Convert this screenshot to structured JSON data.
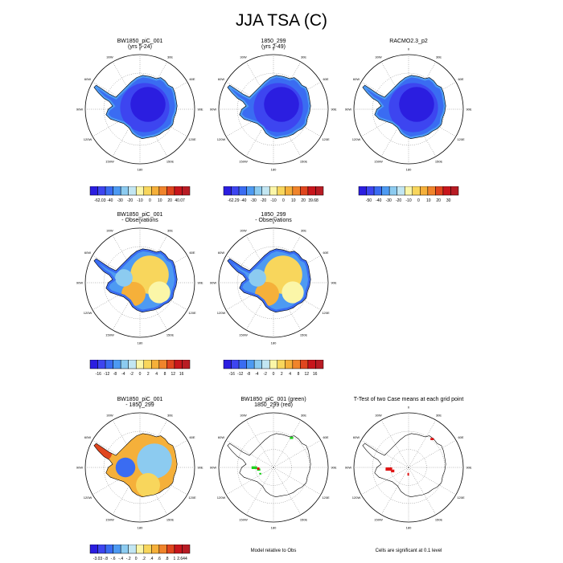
{
  "page_title": "JJA TSA (C)",
  "grid_labels": [
    "0",
    "30E",
    "60E",
    "90E",
    "120E",
    "150E",
    "180",
    "150W",
    "120W",
    "90W",
    "60W",
    "30W"
  ],
  "panels": [
    {
      "id": "r1c1",
      "title1": "BW1850_piC_001",
      "title2": "(yrs 5-24)",
      "style": "abs",
      "colorbar": {
        "colors": [
          "#2b1ee0",
          "#3d45f0",
          "#3a6cf2",
          "#4d9af2",
          "#8ccbf0",
          "#c2e6f2",
          "#fbf6a8",
          "#f8d65c",
          "#f5b03a",
          "#f0842b",
          "#e0461e",
          "#c8161c",
          "#b81c24"
        ],
        "labels": [
          "-62.03",
          "-40",
          "-30",
          "-20",
          "-10",
          "0",
          "10",
          "20",
          "40.07"
        ]
      }
    },
    {
      "id": "r1c2",
      "title1": "1850_299",
      "title2": "(yrs 2-49)",
      "style": "abs",
      "colorbar": {
        "colors": [
          "#2b1ee0",
          "#3d45f0",
          "#3a6cf2",
          "#4d9af2",
          "#8ccbf0",
          "#c2e6f2",
          "#fbf6a8",
          "#f8d65c",
          "#f5b03a",
          "#f0842b",
          "#e0461e",
          "#c8161c",
          "#b81c24"
        ],
        "labels": [
          "-62.29",
          "-40",
          "-30",
          "-20",
          "-10",
          "0",
          "10",
          "20",
          "39.68"
        ]
      }
    },
    {
      "id": "r1c3",
      "title1": "RACMO2.3_p2",
      "title2": "",
      "style": "abs",
      "colorbar": {
        "colors": [
          "#2b1ee0",
          "#3d45f0",
          "#3a6cf2",
          "#4d9af2",
          "#8ccbf0",
          "#c2e6f2",
          "#fbf6a8",
          "#f8d65c",
          "#f5b03a",
          "#f0842b",
          "#e0461e",
          "#c8161c",
          "#b81c24"
        ],
        "labels": [
          "-50",
          "-40",
          "-30",
          "-20",
          "-10",
          "0",
          "10",
          "20",
          "30"
        ]
      }
    },
    {
      "id": "r2c1",
      "title1": "BW1850_piC_001",
      "title2": "- Observations",
      "style": "diff",
      "colorbar": {
        "colors": [
          "#2b1ee0",
          "#3d45f0",
          "#3a6cf2",
          "#4d9af2",
          "#8ccbf0",
          "#c2e6f2",
          "#fbf6a8",
          "#f8d65c",
          "#f5b03a",
          "#f0842b",
          "#e0461e",
          "#c8161c",
          "#b81c24"
        ],
        "labels": [
          "-16",
          "-12",
          "-8",
          "-4",
          "-2",
          "0",
          "2",
          "4",
          "8",
          "12",
          "16"
        ]
      }
    },
    {
      "id": "r2c2",
      "title1": "1850_299",
      "title2": "- Observations",
      "style": "diff",
      "colorbar": {
        "colors": [
          "#2b1ee0",
          "#3d45f0",
          "#3a6cf2",
          "#4d9af2",
          "#8ccbf0",
          "#c2e6f2",
          "#fbf6a8",
          "#f8d65c",
          "#f5b03a",
          "#f0842b",
          "#e0461e",
          "#c8161c",
          "#b81c24"
        ],
        "labels": [
          "-16",
          "-12",
          "-8",
          "-4",
          "-2",
          "0",
          "2",
          "4",
          "8",
          "12",
          "16"
        ]
      }
    },
    {
      "id": "r3c1",
      "title1": "BW1850_piC_001",
      "title2": "- 1850_299",
      "style": "diff2",
      "colorbar": {
        "colors": [
          "#2b1ee0",
          "#3d45f0",
          "#3a6cf2",
          "#4d9af2",
          "#8ccbf0",
          "#c2e6f2",
          "#fbf6a8",
          "#f8d65c",
          "#f5b03a",
          "#f0842b",
          "#e0461e",
          "#c8161c",
          "#b81c24"
        ],
        "labels": [
          "-3.03",
          "-.8",
          "-.6",
          "-.4",
          "-.2",
          "0",
          ".2",
          ".4",
          ".6",
          ".8",
          "1",
          "2.644"
        ]
      }
    },
    {
      "id": "r3c2",
      "title1": "BW1850_piC_001 (green)",
      "title2": "1850_299 (red)",
      "style": "outline-green",
      "footer": "Model relative to Obs"
    },
    {
      "id": "r3c3",
      "title1": "T-Test of two Case means at each grid point",
      "title2": "",
      "style": "outline-red",
      "footer": "Cells are significant at 0.1 level"
    }
  ],
  "chart_data": [
    {
      "type": "heatmap",
      "title": "BW1850_piC_001",
      "subtitle": "(yrs 5-24)",
      "value_range": [
        -62.03,
        40.07
      ],
      "colorbar_ticks": [
        -62.03,
        -40,
        -30,
        -20,
        -10,
        0,
        10,
        20,
        40.07
      ]
    },
    {
      "type": "heatmap",
      "title": "1850_299",
      "subtitle": "(yrs 2-49)",
      "value_range": [
        -62.29,
        39.68
      ],
      "colorbar_ticks": [
        -62.29,
        -40,
        -30,
        -20,
        -10,
        0,
        10,
        20,
        39.68
      ]
    },
    {
      "type": "heatmap",
      "title": "RACMO2.3_p2",
      "colorbar_ticks": [
        -50,
        -40,
        -30,
        -20,
        -10,
        0,
        10,
        20,
        30
      ]
    },
    {
      "type": "heatmap",
      "title": "BW1850_piC_001",
      "subtitle": "- Observations",
      "colorbar_ticks": [
        -16,
        -12,
        -8,
        -4,
        -2,
        0,
        2,
        4,
        8,
        12,
        16
      ]
    },
    {
      "type": "heatmap",
      "title": "1850_299",
      "subtitle": "- Observations",
      "colorbar_ticks": [
        -16,
        -12,
        -8,
        -4,
        -2,
        0,
        2,
        4,
        8,
        12,
        16
      ]
    },
    {
      "type": "heatmap",
      "title": "BW1850_piC_001",
      "subtitle": "- 1850_299",
      "value_range": [
        -3.03,
        2.644
      ],
      "colorbar_ticks": [
        -3.03,
        -0.8,
        -0.6,
        -0.4,
        -0.2,
        0,
        0.2,
        0.4,
        0.6,
        0.8,
        1,
        2.644
      ]
    },
    {
      "type": "heatmap",
      "title": "BW1850_piC_001 (green)",
      "subtitle": "1850_299 (red)",
      "caption": "Model relative to Obs"
    },
    {
      "type": "heatmap",
      "title": "T-Test of two Case means at each grid point",
      "caption": "Cells are significant at 0.1 level"
    }
  ]
}
